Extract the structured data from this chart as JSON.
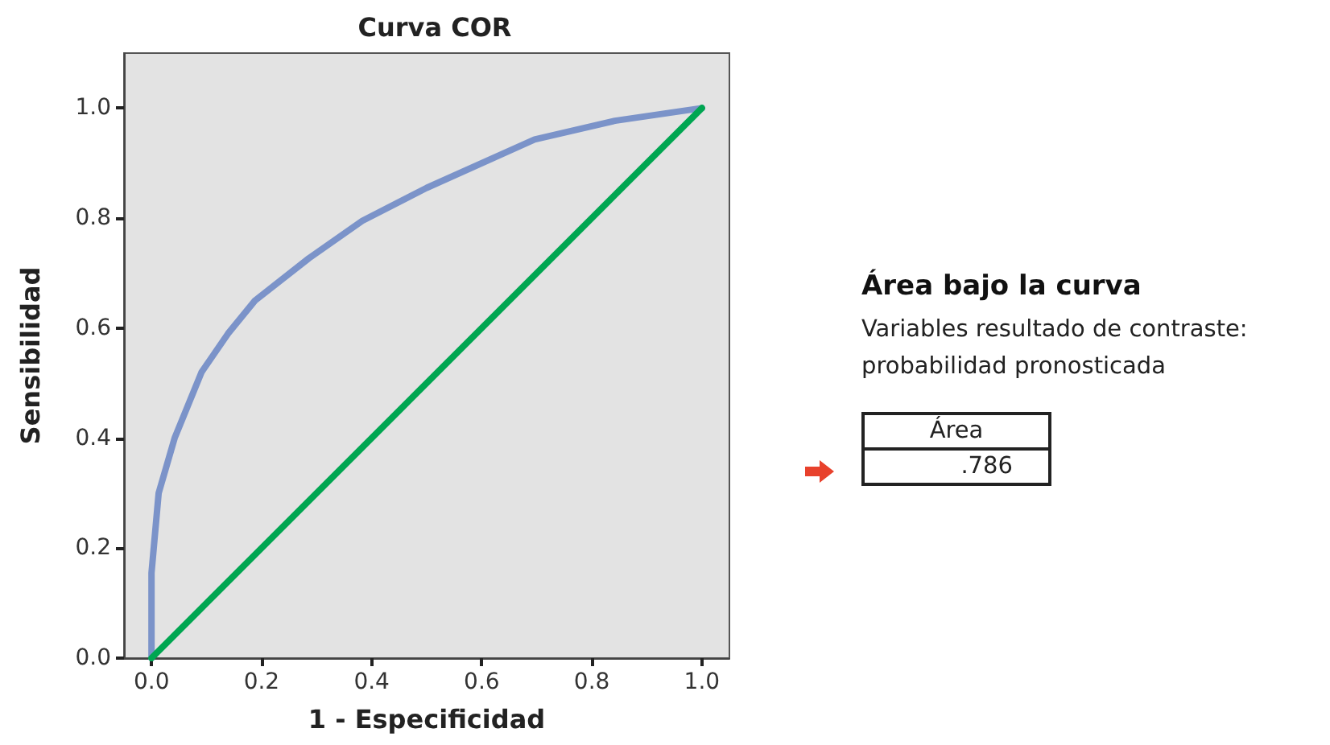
{
  "chart_data": {
    "type": "line",
    "title": "Curva COR",
    "xlabel": "1 - Especificidad",
    "ylabel": "Sensibilidad",
    "xlim": [
      -0.05,
      1.05
    ],
    "ylim": [
      0,
      1.1
    ],
    "xticks": [
      {
        "value": 0,
        "label": "0.0"
      },
      0.2,
      0.4,
      0.6,
      0.8,
      {
        "value": 1,
        "label": "1.0"
      }
    ],
    "yticks": [
      {
        "value": 0,
        "label": "0.0"
      },
      0.2,
      0.4,
      0.6,
      0.8,
      {
        "value": 1,
        "label": "1.0"
      }
    ],
    "grid": false,
    "marker": "none",
    "line_style": "solid",
    "series": [
      {
        "color": "#7b93c9",
        "x": [
          0,
          0,
          0.013,
          0.042,
          0.091,
          0.139,
          0.188,
          0.286,
          0.383,
          0.5,
          0.696,
          0.842,
          1
        ],
        "values": [
          0,
          0.155,
          0.3,
          0.4,
          0.52,
          0.59,
          0.65,
          0.727,
          0.795,
          0.855,
          0.943,
          0.977,
          1
        ]
      },
      {
        "color": "#00a651",
        "x": [
          0,
          1
        ],
        "values": [
          0,
          1
        ]
      }
    ],
    "annotations": [
      "Área bajo la curva",
      "Variables resultado de contraste:\nprobabilidad pronosticada",
      "Área",
      ".786"
    ]
  }
}
